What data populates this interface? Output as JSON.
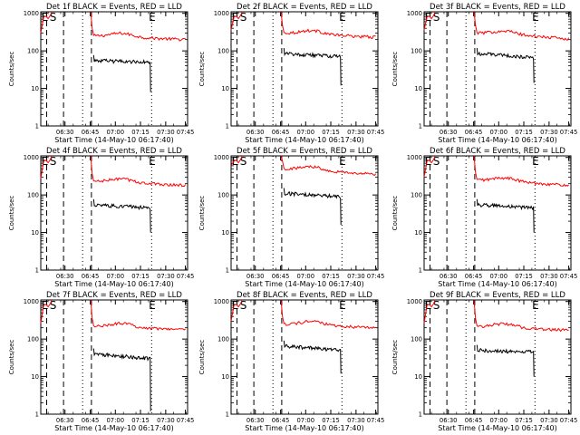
{
  "chart_data": [
    {
      "type": "line",
      "title": "Det 1f BLACK = Events, RED = LLD",
      "xlabel": "Start Time (14-May-10 06:17:40)",
      "ylabel": "Counts/sec",
      "yscale": "log",
      "ylim": [
        1,
        1100
      ],
      "xticks": [
        "06:30",
        "06:45",
        "07:00",
        "07:15",
        "07:30",
        "07:45"
      ],
      "yticks": [
        "1",
        "10",
        "100",
        "1000"
      ],
      "markers": [
        "E",
        "S",
        "E"
      ],
      "series": [
        {
          "color": "#ff0000",
          "baseline": 250,
          "peak": 800,
          "tail": 200
        },
        {
          "color": "#000000",
          "baseline": 55,
          "tail": 50,
          "dropout": 8
        }
      ]
    },
    {
      "type": "line",
      "title": "Det 2f BLACK = Events, RED = LLD",
      "xlabel": "Start Time (14-May-10 06:17:40)",
      "ylabel": "Counts/sec",
      "yscale": "log",
      "ylim": [
        1,
        1100
      ],
      "xticks": [
        "06:30",
        "06:45",
        "07:00",
        "07:15",
        "07:30",
        "07:45"
      ],
      "yticks": [
        "1",
        "10",
        "100",
        "1000"
      ],
      "markers": [
        "E",
        "S",
        "E"
      ],
      "series": [
        {
          "color": "#ff0000",
          "baseline": 300,
          "peak": 800,
          "tail": 230
        },
        {
          "color": "#000000",
          "baseline": 85,
          "tail": 70,
          "dropout": 12
        }
      ]
    },
    {
      "type": "line",
      "title": "Det 3f BLACK = Events, RED = LLD",
      "xlabel": "Start Time (14-May-10 06:17:40)",
      "ylabel": "Counts/sec",
      "yscale": "log",
      "ylim": [
        1,
        1100
      ],
      "xticks": [
        "06:30",
        "06:45",
        "07:00",
        "07:15",
        "07:30",
        "07:45"
      ],
      "yticks": [
        "1",
        "10",
        "100",
        "1000"
      ],
      "markers": [
        "E",
        "S",
        "E"
      ],
      "series": [
        {
          "color": "#ff0000",
          "baseline": 300,
          "peak": 800,
          "tail": 210
        },
        {
          "color": "#000000",
          "baseline": 85,
          "tail": 65,
          "dropout": 14
        }
      ]
    },
    {
      "type": "line",
      "title": "Det 4f BLACK = Events, RED = LLD",
      "xlabel": "Start Time (14-May-10 06:17:40)",
      "ylabel": "Counts/sec",
      "yscale": "log",
      "ylim": [
        1,
        1100
      ],
      "xticks": [
        "06:30",
        "06:45",
        "07:00",
        "07:15",
        "07:30",
        "07:45"
      ],
      "yticks": [
        "1",
        "10",
        "100",
        "1000"
      ],
      "markers": [
        "E",
        "S",
        "E"
      ],
      "series": [
        {
          "color": "#ff0000",
          "baseline": 230,
          "peak": 800,
          "tail": 180
        },
        {
          "color": "#000000",
          "baseline": 55,
          "tail": 45,
          "dropout": 10
        }
      ]
    },
    {
      "type": "line",
      "title": "Det 5f BLACK = Events, RED = LLD",
      "xlabel": "Start Time (14-May-10 06:17:40)",
      "ylabel": "Counts/sec",
      "yscale": "log",
      "ylim": [
        1,
        1100
      ],
      "xticks": [
        "06:30",
        "06:45",
        "07:00",
        "07:15",
        "07:30",
        "07:45"
      ],
      "yticks": [
        "1",
        "10",
        "100",
        "1000"
      ],
      "markers": [
        "E",
        "S",
        "E"
      ],
      "series": [
        {
          "color": "#ff0000",
          "baseline": 500,
          "peak": 800,
          "tail": 350
        },
        {
          "color": "#000000",
          "baseline": 110,
          "tail": 90,
          "dropout": 16
        }
      ]
    },
    {
      "type": "line",
      "title": "Det 6f BLACK = Events, RED = LLD",
      "xlabel": "Start Time (14-May-10 06:17:40)",
      "ylabel": "Counts/sec",
      "yscale": "log",
      "ylim": [
        1,
        1100
      ],
      "xticks": [
        "06:30",
        "06:45",
        "07:00",
        "07:15",
        "07:30",
        "07:45"
      ],
      "yticks": [
        "1",
        "10",
        "100",
        "1000"
      ],
      "markers": [
        "E",
        "S",
        "E"
      ],
      "series": [
        {
          "color": "#ff0000",
          "baseline": 250,
          "peak": 800,
          "tail": 180
        },
        {
          "color": "#000000",
          "baseline": 55,
          "tail": 45,
          "dropout": 10
        }
      ]
    },
    {
      "type": "line",
      "title": "Det 7f BLACK = Events, RED = LLD",
      "xlabel": "Start Time (14-May-10 06:17:40)",
      "ylabel": "Counts/sec",
      "yscale": "log",
      "ylim": [
        1,
        1100
      ],
      "xticks": [
        "06:30",
        "06:45",
        "07:00",
        "07:15",
        "07:30",
        "07:45"
      ],
      "yticks": [
        "1",
        "10",
        "100",
        "1000"
      ],
      "markers": [
        "E",
        "S",
        "E"
      ],
      "series": [
        {
          "color": "#ff0000",
          "baseline": 220,
          "peak": 800,
          "tail": 180
        },
        {
          "color": "#000000",
          "baseline": 40,
          "tail": 30,
          "dropout": 1.2
        }
      ]
    },
    {
      "type": "line",
      "title": "Det 8f BLACK = Events, RED = LLD",
      "xlabel": "Start Time (14-May-10 06:17:40)",
      "ylabel": "Counts/sec",
      "yscale": "log",
      "ylim": [
        1,
        1100
      ],
      "xticks": [
        "06:30",
        "06:45",
        "07:00",
        "07:15",
        "07:30",
        "07:45"
      ],
      "yticks": [
        "1",
        "10",
        "100",
        "1000"
      ],
      "markers": [
        "E",
        "S",
        "E"
      ],
      "series": [
        {
          "color": "#ff0000",
          "baseline": 250,
          "peak": 800,
          "tail": 200
        },
        {
          "color": "#000000",
          "baseline": 65,
          "tail": 50,
          "dropout": 12
        }
      ]
    },
    {
      "type": "line",
      "title": "Det 9f BLACK = Events, RED = LLD",
      "xlabel": "Start Time (14-May-10 06:17:40)",
      "ylabel": "Counts/sec",
      "yscale": "log",
      "ylim": [
        1,
        1100
      ],
      "xticks": [
        "06:30",
        "06:45",
        "07:00",
        "07:15",
        "07:30",
        "07:45"
      ],
      "yticks": [
        "1",
        "10",
        "100",
        "1000"
      ],
      "markers": [
        "E",
        "S",
        "E"
      ],
      "series": [
        {
          "color": "#ff0000",
          "baseline": 220,
          "peak": 800,
          "tail": 170
        },
        {
          "color": "#000000",
          "baseline": 50,
          "tail": 45,
          "dropout": 10
        }
      ]
    }
  ]
}
